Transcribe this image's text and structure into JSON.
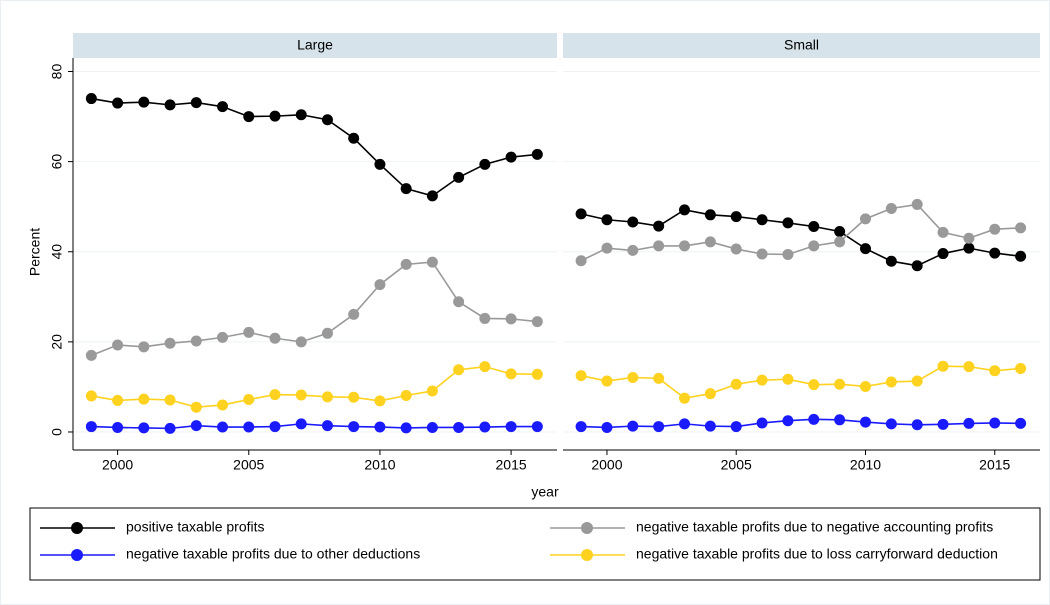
{
  "chart_data": {
    "type": "line",
    "ylabel": "Percent",
    "xlabel": "year",
    "x": [
      1999,
      2000,
      2001,
      2002,
      2003,
      2004,
      2005,
      2006,
      2007,
      2008,
      2009,
      2010,
      2011,
      2012,
      2013,
      2014,
      2015,
      2016
    ],
    "xlim": [
      1998.3,
      2016.75
    ],
    "xticks": [
      2000,
      2005,
      2010,
      2015
    ],
    "ylim": [
      -4,
      83
    ],
    "yticks": [
      0,
      20,
      40,
      60,
      80
    ],
    "grid": true,
    "legend": "bottom",
    "panels": [
      {
        "title": "Large",
        "series": [
          {
            "name": "positive taxable profits",
            "color": "#000000",
            "values": [
              74,
              73,
              73.2,
              72.6,
              73.1,
              72.2,
              70,
              70.1,
              70.4,
              69.3,
              65.2,
              59.4,
              54,
              52.4,
              56.5,
              59.4,
              61,
              61.6
            ]
          },
          {
            "name": "negative taxable profits due to negative accounting profits",
            "color": "#999999",
            "values": [
              17,
              19.3,
              18.9,
              19.7,
              20.2,
              21,
              22.1,
              20.8,
              20,
              21.9,
              26.1,
              32.7,
              37.2,
              37.7,
              28.9,
              25.2,
              25.1,
              24.5
            ]
          },
          {
            "name": "negative taxable profits due to other deductions",
            "color": "#1a1aff",
            "values": [
              1.2,
              1,
              0.9,
              0.8,
              1.4,
              1.1,
              1.1,
              1.2,
              1.8,
              1.4,
              1.2,
              1.1,
              0.9,
              1,
              1,
              1.1,
              1.2,
              1.2
            ]
          },
          {
            "name": "negative taxable profits due to loss carryforward deduction",
            "color": "#ffd21f",
            "values": [
              8,
              7,
              7.3,
              7.1,
              5.5,
              6,
              7.2,
              8.3,
              8.2,
              7.8,
              7.7,
              6.9,
              8.1,
              9.1,
              13.8,
              14.5,
              12.9,
              12.8
            ]
          }
        ]
      },
      {
        "title": "Small",
        "series": [
          {
            "name": "positive taxable profits",
            "color": "#000000",
            "values": [
              48.4,
              47.1,
              46.6,
              45.7,
              49.3,
              48.2,
              47.8,
              47.1,
              46.4,
              45.6,
              44.5,
              40.7,
              37.9,
              36.9,
              39.6,
              40.8,
              39.7,
              39
            ]
          },
          {
            "name": "negative taxable profits due to negative accounting profits",
            "color": "#999999",
            "values": [
              38,
              40.8,
              40.3,
              41.3,
              41.3,
              42.2,
              40.6,
              39.5,
              39.4,
              41.3,
              42.2,
              47.3,
              49.6,
              50.5,
              44.3,
              43,
              45,
              45.3
            ]
          },
          {
            "name": "negative taxable profits due to other deductions",
            "color": "#1a1aff",
            "values": [
              1.2,
              1,
              1.3,
              1.2,
              1.8,
              1.3,
              1.2,
              2,
              2.5,
              2.8,
              2.7,
              2.2,
              1.8,
              1.6,
              1.7,
              1.9,
              2,
              1.9
            ]
          },
          {
            "name": "negative taxable profits due to loss carryforward deduction",
            "color": "#ffd21f",
            "values": [
              12.5,
              11.3,
              12.1,
              11.9,
              7.5,
              8.5,
              10.6,
              11.5,
              11.7,
              10.5,
              10.6,
              10.1,
              11.1,
              11.3,
              14.6,
              14.5,
              13.6,
              14.1
            ]
          }
        ]
      }
    ]
  }
}
